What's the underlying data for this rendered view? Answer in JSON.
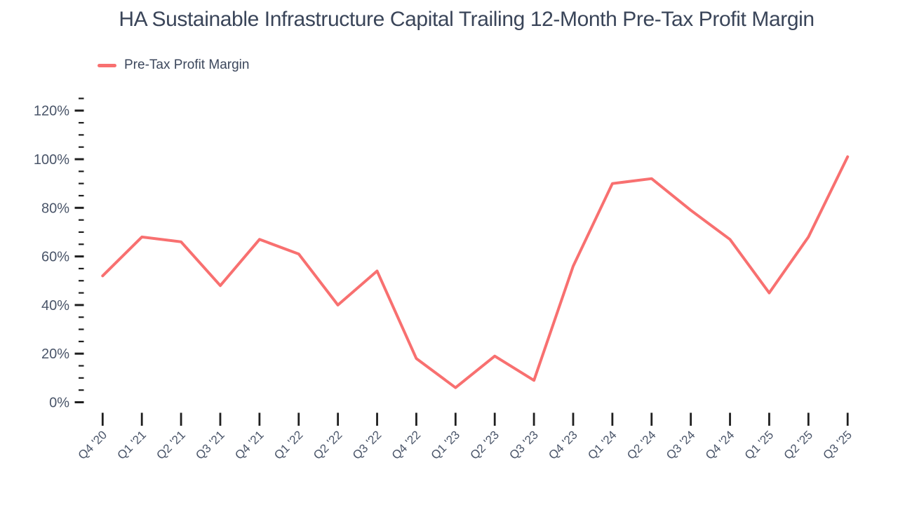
{
  "chart_data": {
    "type": "line",
    "title": "HA Sustainable Infrastructure Capital Trailing 12-Month Pre-Tax Profit Margin",
    "xlabel": "",
    "ylabel": "",
    "categories": [
      "Q4 '20",
      "Q1 '21",
      "Q2 '21",
      "Q3 '21",
      "Q4 '21",
      "Q1 '22",
      "Q2 '22",
      "Q3 '22",
      "Q4 '22",
      "Q1 '23",
      "Q2 '23",
      "Q3 '23",
      "Q4 '23",
      "Q1 '24",
      "Q2 '24",
      "Q3 '24",
      "Q4 '24",
      "Q1 '25",
      "Q2 '25",
      "Q3 '25"
    ],
    "series": [
      {
        "name": "Pre-Tax Profit Margin",
        "values": [
          52,
          68,
          66,
          48,
          67,
          61,
          40,
          54,
          18,
          6,
          19,
          9,
          56,
          90,
          92,
          79,
          67,
          45,
          68,
          101
        ]
      }
    ],
    "ylim": [
      0,
      130
    ],
    "y_ticks": [
      {
        "value": 0,
        "label": "0%"
      },
      {
        "value": 20,
        "label": "20%"
      },
      {
        "value": 40,
        "label": "40%"
      },
      {
        "value": 60,
        "label": "60%"
      },
      {
        "value": 80,
        "label": "80%"
      },
      {
        "value": 100,
        "label": "100%"
      },
      {
        "value": 120,
        "label": "120%"
      }
    ],
    "y_minor_tick_step": 5,
    "grid": false,
    "legend_position": "top-left",
    "line_color": "#F87070",
    "tick_color": "#1f1f1f"
  }
}
